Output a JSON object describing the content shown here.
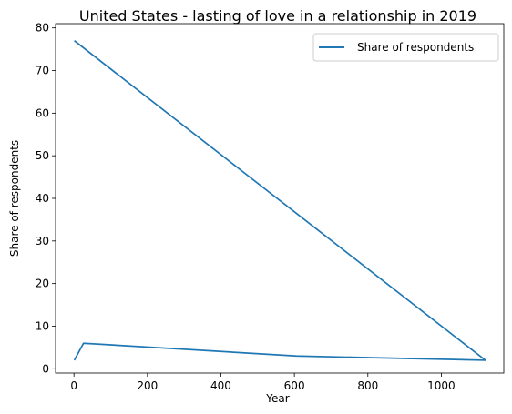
{
  "chart_data": {
    "type": "line",
    "title": "United States - lasting of love in a relationship in 2019",
    "xlabel": "Year",
    "ylabel": "Share of respondents",
    "xlim": [
      -50,
      1170
    ],
    "ylim": [
      -1,
      81
    ],
    "xticks": [
      0,
      200,
      400,
      600,
      800,
      1000
    ],
    "yticks": [
      0,
      10,
      20,
      30,
      40,
      50,
      60,
      70,
      80
    ],
    "grid": false,
    "legend_position": "top-right",
    "series": [
      {
        "name": "Share of respondents",
        "color": "#1f77b4",
        "x": [
          1,
          26,
          606,
          1120,
          1
        ],
        "y": [
          2,
          6,
          3,
          2,
          77
        ]
      }
    ]
  }
}
